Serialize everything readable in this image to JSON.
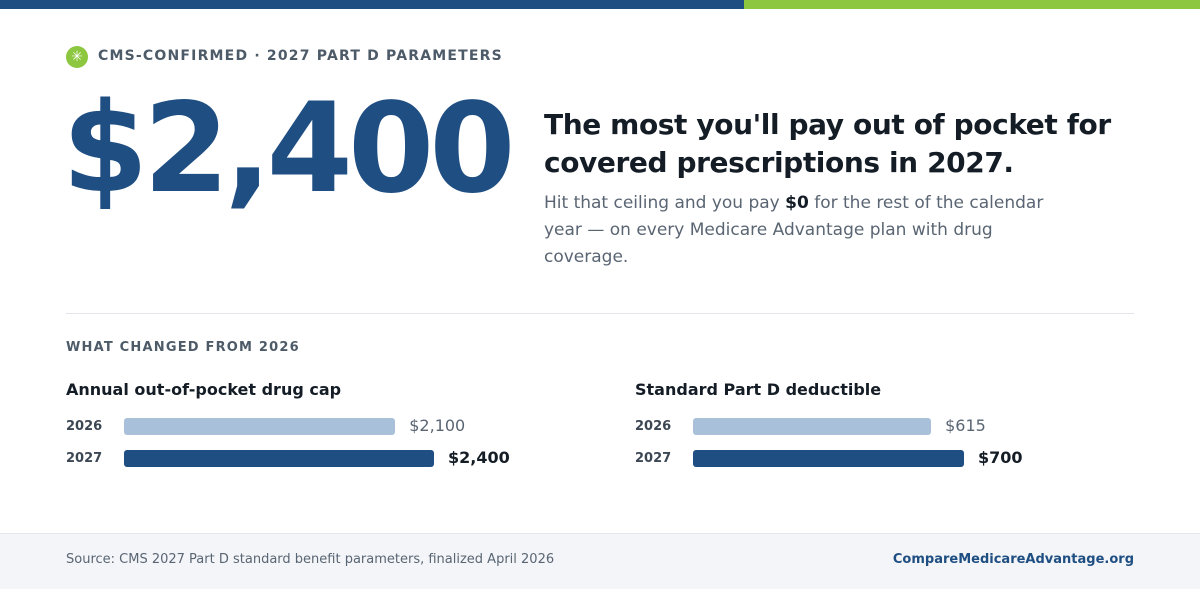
{
  "header": {
    "badge": "CMS-CONFIRMED · 2027 PART D PARAMETERS"
  },
  "hero": {
    "amount": "$2,400",
    "headline": "The most you'll pay out of pocket for covered prescriptions in 2027.",
    "body": [
      "Hit that ceiling and you pay ",
      "$0",
      " for the rest of the calendar year — on every Medicare Advantage plan with drug coverage."
    ]
  },
  "section_label": "WHAT CHANGED FROM 2026",
  "chart_data": [
    {
      "type": "bar",
      "orientation": "horizontal",
      "title": "Annual out-of-pocket drug cap",
      "categories": [
        "2026",
        "2027"
      ],
      "values": [
        2100,
        2400
      ],
      "value_labels": [
        "$2,100",
        "$2,400"
      ],
      "colors": [
        "#a9c0da",
        "#1f4e82"
      ]
    },
    {
      "type": "bar",
      "orientation": "horizontal",
      "title": "Standard Part D deductible",
      "categories": [
        "2026",
        "2027"
      ],
      "values": [
        615,
        700
      ],
      "value_labels": [
        "$615",
        "$700"
      ],
      "colors": [
        "#a9c0da",
        "#1f4e82"
      ]
    }
  ],
  "footer": {
    "source": "Source: CMS 2027 Part D standard benefit parameters, finalized April 2026",
    "site": "CompareMedicareAdvantage.org"
  }
}
